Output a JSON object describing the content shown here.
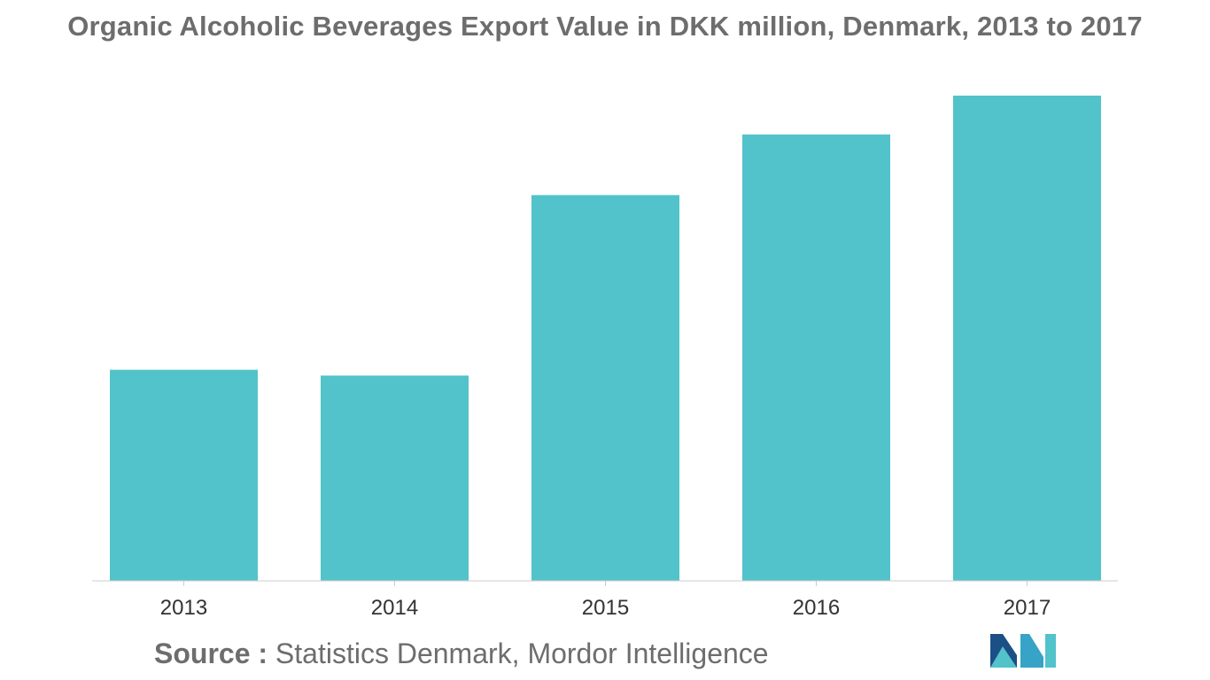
{
  "chart_data": {
    "type": "bar",
    "title": "Organic Alcoholic Beverages Export Value in DKK million, Denmark, 2013 to 2017",
    "categories": [
      "2013",
      "2014",
      "2015",
      "2016",
      "2017"
    ],
    "values": [
      43.5,
      42.3,
      79.5,
      92.0,
      100.0
    ],
    "ylim": [
      0,
      100
    ],
    "grid": false,
    "legend": "none",
    "bar_color": "#52c3ca"
  },
  "source": {
    "label": "Source :",
    "text": " Statistics Denmark, Mordor Intelligence"
  },
  "logo": {
    "icon": "mordor-intelligence-logo-icon",
    "colors": [
      "#1c4f86",
      "#36a3c7",
      "#52c3ca"
    ]
  }
}
